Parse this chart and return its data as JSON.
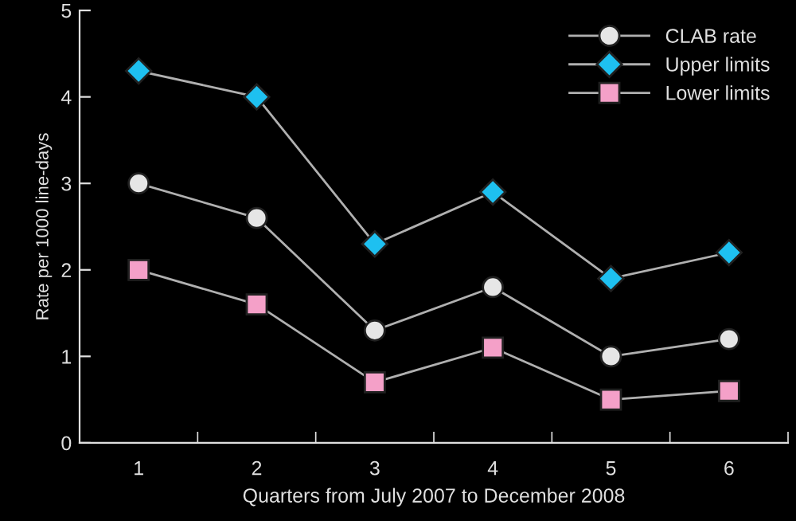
{
  "chart_data": {
    "type": "line",
    "xlabel": "Quarters from July 2007 to December 2008",
    "ylabel": "Rate per 1000 line-days",
    "categories": [
      "1",
      "2",
      "3",
      "4",
      "5",
      "6"
    ],
    "series": [
      {
        "name": "CLAB rate",
        "color": "#e6e6e6",
        "marker": "circle",
        "values": [
          3.0,
          2.6,
          1.3,
          1.8,
          1.0,
          1.2
        ]
      },
      {
        "name": "Upper limits",
        "color": "#1ec0f0",
        "marker": "diamond",
        "values": [
          4.3,
          4.0,
          2.3,
          2.9,
          1.9,
          2.2
        ]
      },
      {
        "name": "Lower limits",
        "color": "#f4a0c8",
        "marker": "square",
        "values": [
          2.0,
          1.6,
          0.7,
          1.1,
          0.5,
          0.6
        ]
      }
    ],
    "ylim": [
      0,
      5
    ],
    "yticks": [
      0,
      1,
      2,
      3,
      4,
      5
    ],
    "grid": false,
    "legend": "top right",
    "line_style": "solid"
  }
}
